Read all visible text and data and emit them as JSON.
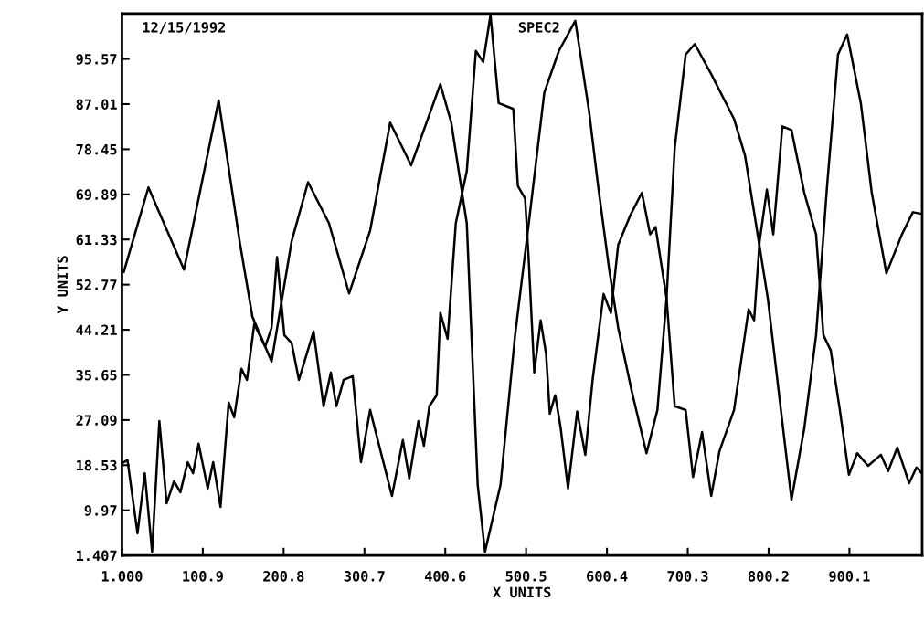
{
  "chart_data": {
    "type": "line",
    "xlabel": "X UNITS",
    "ylabel": "Y UNITS",
    "annotations": [
      "12/15/1992",
      "SPEC2"
    ],
    "xlim": [
      1,
      990
    ],
    "ylim": [
      1.407,
      104.16
    ],
    "xticks": [
      {
        "value": 1,
        "label": "1.000"
      },
      100.9,
      200.8,
      300.7,
      400.6,
      500.5,
      600.4,
      700.3,
      800.2,
      900.1
    ],
    "yticks": [
      1.407,
      9.97,
      18.53,
      27.09,
      35.65,
      44.21,
      52.77,
      61.33,
      69.89,
      78.45,
      87.01,
      95.57
    ],
    "grid": false,
    "marker": "none",
    "line_style": "solid",
    "series": [
      {
        "color": "#000000",
        "x": [
          3.3,
          33.7,
          77.7,
          120.5,
          146.4,
          162.2,
          185.9,
          210.7,
          231.0,
          256.9,
          281.7,
          307.7,
          332.5,
          358.4,
          394.5,
          408.0,
          427.2,
          440.7,
          449.7,
          468.9,
          486.9,
          503.8,
          523.0,
          541.0,
          561.3,
          578.2,
          589.5,
          603.0,
          614.3,
          631.2,
          649.3,
          662.8,
          674.1,
          684.2,
          697.7,
          709.0,
          729.3,
          757.5,
          771.0,
          784.5,
          799.2,
          812.7,
          828.5,
          844.3,
          858.9,
          872.5,
          886.0,
          897.3,
          914.2,
          927.7,
          945.8,
          965.0,
          978.5,
          989.7
        ],
        "values": [
          55.2,
          71.2,
          55.6,
          87.7,
          61.0,
          46.7,
          38.2,
          61.0,
          72.2,
          64.4,
          51.1,
          63.0,
          83.5,
          75.4,
          90.8,
          83.5,
          64.4,
          14.8,
          2.1,
          14.8,
          43.2,
          64.4,
          89.2,
          97.1,
          102.8,
          85.8,
          71.5,
          55.9,
          44.6,
          32.5,
          20.8,
          29.0,
          50.2,
          78.7,
          96.4,
          98.4,
          92.7,
          84.2,
          77.3,
          64.4,
          50.2,
          32.5,
          12.0,
          25.5,
          43.2,
          71.5,
          96.4,
          100.2,
          87.2,
          70.2,
          54.9,
          62.3,
          66.5,
          66.2
        ]
      },
      {
        "color": "#000000",
        "x": [
          3.3,
          7.8,
          20.2,
          29.2,
          38.2,
          47.2,
          56.2,
          65.3,
          73.2,
          82.2,
          88.9,
          95.7,
          107.0,
          113.7,
          122.8,
          132.9,
          139.7,
          148.7,
          155.5,
          164.5,
          178.0,
          185.9,
          192.7,
          201.7,
          210.7,
          219.7,
          237.8,
          250.2,
          259.2,
          265.9,
          275.0,
          286.2,
          296.4,
          307.7,
          334.7,
          348.2,
          356.1,
          367.4,
          374.2,
          380.9,
          390.0,
          394.5,
          403.5,
          413.6,
          427.2,
          438.4,
          447.5,
          456.5,
          466.6,
          484.7,
          490.3,
          499.3,
          503.8,
          510.6,
          518.5,
          525.2,
          529.8,
          536.5,
          543.3,
          552.3,
          563.6,
          573.7,
          582.7,
          596.3,
          605.3,
          614.3,
          628.9,
          643.6,
          653.8,
          660.5,
          674.1,
          684.2,
          697.7,
          706.8,
          718.0,
          729.3,
          739.5,
          757.5,
          775.5,
          782.3,
          789.1,
          798.1,
          806.0,
          817.2,
          828.5,
          844.3,
          858.9,
          868.0,
          877.0,
          888.3,
          899.5,
          909.7,
          923.2,
          939.0,
          948.0,
          959.3,
          973.9,
          983.0,
          989.7
        ],
        "values": [
          19.1,
          19.5,
          5.6,
          17.0,
          2.1,
          26.9,
          11.3,
          15.5,
          13.4,
          19.1,
          17.0,
          22.6,
          14.1,
          19.1,
          10.6,
          30.4,
          27.6,
          36.8,
          34.7,
          45.3,
          41.0,
          44.6,
          58.0,
          43.2,
          41.7,
          34.7,
          43.9,
          29.7,
          36.1,
          29.7,
          34.7,
          35.4,
          19.1,
          29.0,
          12.7,
          23.3,
          16.0,
          26.9,
          22.2,
          29.7,
          31.8,
          47.4,
          42.5,
          64.4,
          74.3,
          97.1,
          95.0,
          103.9,
          87.2,
          86.1,
          71.5,
          69.1,
          57.3,
          36.1,
          46.0,
          39.6,
          28.3,
          31.8,
          25.5,
          14.1,
          28.7,
          20.5,
          34.7,
          51.0,
          47.4,
          60.3,
          65.8,
          70.2,
          62.3,
          63.7,
          50.2,
          29.7,
          29.0,
          16.3,
          24.8,
          12.7,
          21.2,
          29.0,
          48.1,
          46.0,
          61.0,
          70.8,
          62.3,
          82.8,
          82.1,
          70.2,
          62.3,
          43.2,
          40.3,
          29.0,
          16.7,
          20.8,
          18.4,
          20.5,
          17.4,
          21.9,
          15.1,
          18.1,
          17.0
        ]
      }
    ]
  }
}
